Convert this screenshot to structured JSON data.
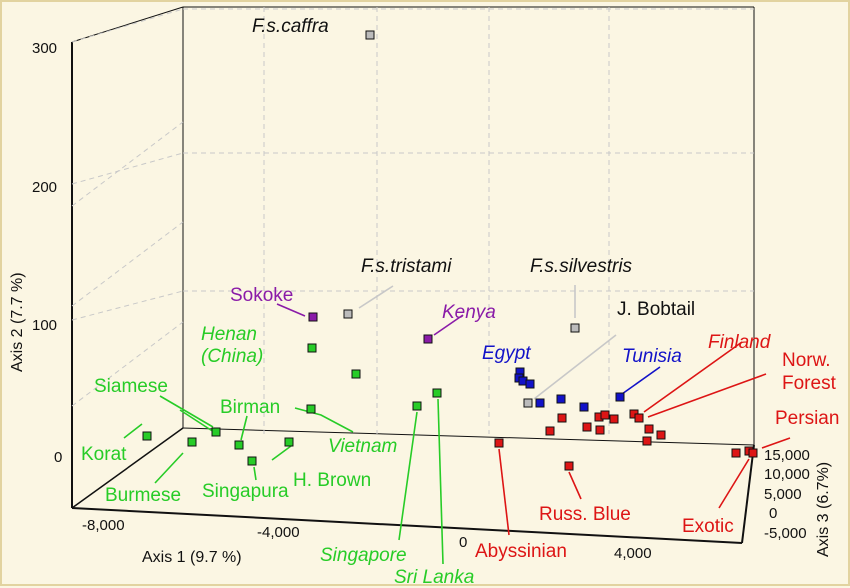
{
  "chart_data": {
    "type": "scatter",
    "subtype": "3d-scatter",
    "axes": {
      "x": {
        "label": "Axis 1 (9.7 %)",
        "ticks": [
          "-8,000",
          "-4,000",
          "0",
          "4,000"
        ]
      },
      "y": {
        "label": "Axis 2 (7.7 %)",
        "ticks": [
          "0",
          "100",
          "200",
          "300"
        ],
        "range": [
          0,
          320
        ]
      },
      "z": {
        "label": "Axis 3 (6.7%)",
        "ticks": [
          "15,000",
          "10,000",
          "5,000",
          "0",
          "-5,000"
        ]
      }
    },
    "grid": true,
    "colors": {
      "asian": "#27cc27",
      "kenya_sokoke": "#8a1ba8",
      "med": "#1212c8",
      "western": "#dd1515",
      "wild": "#bbbbbb",
      "wild_text": "#111111"
    },
    "labels": [
      {
        "id": "caffra",
        "text": "F.s.caffra",
        "italic": true,
        "group": "wild_text"
      },
      {
        "id": "tristami",
        "text": "F.s.tristami",
        "italic": true,
        "group": "wild_text"
      },
      {
        "id": "silvestris",
        "text": "F.s.silvestris",
        "italic": true,
        "group": "wild_text"
      },
      {
        "id": "jbobtail",
        "text": "J. Bobtail",
        "italic": false,
        "group": "wild_text"
      },
      {
        "id": "sokoke",
        "text": "Sokoke",
        "italic": false,
        "group": "kenya_sokoke"
      },
      {
        "id": "kenya",
        "text": "Kenya",
        "italic": true,
        "group": "kenya_sokoke"
      },
      {
        "id": "henan1",
        "text": "Henan",
        "italic": true,
        "group": "asian"
      },
      {
        "id": "henan2",
        "text": "(China)",
        "italic": true,
        "group": "asian"
      },
      {
        "id": "siamese",
        "text": "Siamese",
        "italic": false,
        "group": "asian"
      },
      {
        "id": "birman",
        "text": "Birman",
        "italic": false,
        "group": "asian"
      },
      {
        "id": "korat",
        "text": "Korat",
        "italic": false,
        "group": "asian"
      },
      {
        "id": "vietnam",
        "text": "Vietnam",
        "italic": true,
        "group": "asian"
      },
      {
        "id": "hbrown",
        "text": "H. Brown",
        "italic": false,
        "group": "asian"
      },
      {
        "id": "burmese",
        "text": "Burmese",
        "italic": false,
        "group": "asian"
      },
      {
        "id": "singapura",
        "text": "Singapura",
        "italic": false,
        "group": "asian"
      },
      {
        "id": "singapore",
        "text": "Singapore",
        "italic": true,
        "group": "asian"
      },
      {
        "id": "srilanka",
        "text": "Sri Lanka",
        "italic": true,
        "group": "asian"
      },
      {
        "id": "egypt",
        "text": "Egypt",
        "italic": true,
        "group": "med"
      },
      {
        "id": "tunisia",
        "text": "Tunisia",
        "italic": true,
        "group": "med"
      },
      {
        "id": "finland",
        "text": "Finland",
        "italic": true,
        "group": "western"
      },
      {
        "id": "norw1",
        "text": "Norw.",
        "italic": false,
        "group": "western"
      },
      {
        "id": "norw2",
        "text": "Forest",
        "italic": false,
        "group": "western"
      },
      {
        "id": "persian",
        "text": "Persian",
        "italic": false,
        "group": "western"
      },
      {
        "id": "exotic",
        "text": "Exotic",
        "italic": false,
        "group": "western"
      },
      {
        "id": "russ",
        "text": "Russ. Blue",
        "italic": false,
        "group": "western"
      },
      {
        "id": "abyssinian",
        "text": "Abyssinian",
        "italic": false,
        "group": "western"
      }
    ],
    "points": [
      {
        "group": "wild",
        "label": "F.s.caffra"
      },
      {
        "group": "wild",
        "label": "F.s.tristami"
      },
      {
        "group": "wild",
        "label": "F.s.silvestris"
      },
      {
        "group": "wild",
        "label": "J. Bobtail"
      },
      {
        "group": "kenya_sokoke",
        "label": "Sokoke"
      },
      {
        "group": "kenya_sokoke",
        "label": "Kenya"
      },
      {
        "group": "asian",
        "label": "Henan (China)"
      },
      {
        "group": "asian",
        "label": "Henan (China)"
      },
      {
        "group": "asian",
        "label": "Siamese"
      },
      {
        "group": "asian",
        "label": "Birman"
      },
      {
        "group": "asian",
        "label": "Korat"
      },
      {
        "group": "asian",
        "label": "Burmese"
      },
      {
        "group": "asian",
        "label": "Singapura"
      },
      {
        "group": "asian",
        "label": "H. Brown"
      },
      {
        "group": "asian",
        "label": "Vietnam"
      },
      {
        "group": "asian",
        "label": "Singapore"
      },
      {
        "group": "asian",
        "label": "Sri Lanka"
      },
      {
        "group": "med",
        "label": "Egypt"
      },
      {
        "group": "med",
        "label": "Egypt"
      },
      {
        "group": "med",
        "label": "Egypt"
      },
      {
        "group": "med",
        "label": "Egypt"
      },
      {
        "group": "med",
        "label": "Egypt"
      },
      {
        "group": "med",
        "label": "Tunisia"
      },
      {
        "group": "med",
        "label": "Tunisia"
      },
      {
        "group": "med",
        "label": "Tunisia"
      },
      {
        "group": "western",
        "label": "Finland"
      },
      {
        "group": "western",
        "label": "Finland"
      },
      {
        "group": "western",
        "label": "Norw. Forest"
      },
      {
        "group": "western",
        "label": "Norw. Forest"
      },
      {
        "group": "western",
        "label": "Norw. Forest"
      },
      {
        "group": "western",
        "label": "Persian"
      },
      {
        "group": "western",
        "label": "Persian"
      },
      {
        "group": "western",
        "label": "Persian"
      },
      {
        "group": "western",
        "label": "Exotic"
      },
      {
        "group": "western",
        "label": "Russ. Blue"
      },
      {
        "group": "western",
        "label": "Abyssinian"
      }
    ]
  }
}
